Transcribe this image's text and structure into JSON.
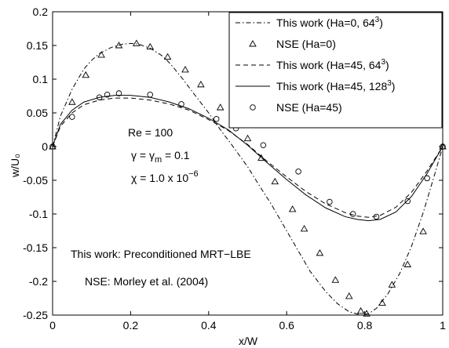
{
  "chart_data": {
    "type": "line",
    "xlabel": "x/W",
    "ylabel": "w/U₀",
    "xlim": [
      0,
      1
    ],
    "ylim": [
      -0.25,
      0.2
    ],
    "xticks": [
      0,
      0.2,
      0.4,
      0.6,
      0.8,
      1
    ],
    "xtick_labels": [
      "0",
      "0.2",
      "0.4",
      "0.6",
      "0.8",
      "1"
    ],
    "yticks": [
      -0.25,
      -0.2,
      -0.15,
      -0.1,
      -0.05,
      0,
      0.05,
      0.1,
      0.15,
      0.2
    ],
    "ytick_labels": [
      "-0.25",
      "-0.2",
      "-0.15",
      "-0.1",
      "-0.05",
      "0",
      "0.05",
      "0.1",
      "0.15",
      "0.2"
    ],
    "grid": false,
    "legend_position": "top-right",
    "annotations": {
      "re": "Re = 100",
      "gamma": "γ = γ",
      "gamma_sub": "m",
      "gamma_val": " = 0.1",
      "chi": "χ = 1.0 x 10",
      "chi_exp": "−6",
      "method": "This work: Preconditioned MRT−LBE",
      "nse_ref": "NSE: Morley et al. (2004)"
    },
    "series": [
      {
        "name": "This work (Ha=0, 64³)",
        "legend_main": "This work (Ha=0, 64",
        "legend_sup": "3",
        "legend_end": ")",
        "style": "dash-dot",
        "marker": "none",
        "x": [
          0,
          0.02,
          0.05,
          0.08,
          0.1,
          0.12,
          0.15,
          0.18,
          0.2,
          0.22,
          0.25,
          0.28,
          0.3,
          0.33,
          0.36,
          0.4,
          0.43,
          0.46,
          0.5,
          0.53,
          0.56,
          0.6,
          0.63,
          0.66,
          0.7,
          0.73,
          0.76,
          0.79,
          0.81,
          0.83,
          0.86,
          0.89,
          0.92,
          0.95,
          0.98,
          1
        ],
        "y": [
          0,
          0.045,
          0.085,
          0.115,
          0.128,
          0.138,
          0.147,
          0.152,
          0.153,
          0.152,
          0.146,
          0.135,
          0.124,
          0.103,
          0.08,
          0.05,
          0.025,
          0.002,
          -0.03,
          -0.058,
          -0.085,
          -0.125,
          -0.155,
          -0.185,
          -0.215,
          -0.233,
          -0.245,
          -0.25,
          -0.248,
          -0.24,
          -0.218,
          -0.188,
          -0.148,
          -0.098,
          -0.04,
          0
        ]
      },
      {
        "name": "NSE (Ha=0)",
        "legend_main": "NSE (Ha=0)",
        "legend_sup": "",
        "legend_end": "",
        "style": "none",
        "marker": "triangle",
        "x": [
          0,
          0.05,
          0.085,
          0.125,
          0.17,
          0.215,
          0.25,
          0.295,
          0.34,
          0.38,
          0.43,
          0.5,
          0.535,
          0.57,
          0.615,
          0.645,
          0.685,
          0.725,
          0.76,
          0.79,
          0.805,
          0.845,
          0.87,
          0.91,
          0.95,
          1
        ],
        "y": [
          0,
          0.066,
          0.106,
          0.136,
          0.15,
          0.153,
          0.148,
          0.133,
          0.114,
          0.092,
          0.058,
          0.012,
          -0.017,
          -0.052,
          -0.093,
          -0.122,
          -0.158,
          -0.198,
          -0.222,
          -0.244,
          -0.248,
          -0.232,
          -0.205,
          -0.175,
          -0.126,
          0
        ]
      },
      {
        "name": "This work (Ha=45, 64³)",
        "legend_main": "This work (Ha=45, 64",
        "legend_sup": "3",
        "legend_end": ")",
        "style": "dashed",
        "marker": "none",
        "x": [
          0,
          0.02,
          0.05,
          0.08,
          0.12,
          0.16,
          0.2,
          0.25,
          0.3,
          0.35,
          0.4,
          0.45,
          0.5,
          0.55,
          0.6,
          0.65,
          0.7,
          0.75,
          0.78,
          0.81,
          0.84,
          0.88,
          0.92,
          0.96,
          1
        ],
        "y": [
          0,
          0.03,
          0.05,
          0.062,
          0.069,
          0.072,
          0.072,
          0.069,
          0.063,
          0.054,
          0.04,
          0.024,
          0.003,
          -0.022,
          -0.045,
          -0.067,
          -0.085,
          -0.098,
          -0.103,
          -0.105,
          -0.102,
          -0.09,
          -0.068,
          -0.036,
          0
        ]
      },
      {
        "name": "This work (Ha=45, 128³)",
        "legend_main": "This work (Ha=45, 128",
        "legend_sup": "3",
        "legend_end": ")",
        "style": "solid",
        "marker": "none",
        "x": [
          0,
          0.02,
          0.05,
          0.08,
          0.12,
          0.16,
          0.2,
          0.25,
          0.3,
          0.35,
          0.4,
          0.45,
          0.5,
          0.55,
          0.6,
          0.65,
          0.7,
          0.75,
          0.78,
          0.81,
          0.84,
          0.88,
          0.92,
          0.96,
          1
        ],
        "y": [
          0,
          0.033,
          0.054,
          0.066,
          0.073,
          0.076,
          0.076,
          0.073,
          0.066,
          0.056,
          0.042,
          0.025,
          0.002,
          -0.024,
          -0.049,
          -0.072,
          -0.091,
          -0.104,
          -0.108,
          -0.11,
          -0.108,
          -0.097,
          -0.074,
          -0.04,
          0
        ]
      },
      {
        "name": "NSE (Ha=45)",
        "legend_main": "NSE (Ha=45)",
        "legend_sup": "",
        "legend_end": "",
        "style": "none",
        "marker": "circle",
        "x": [
          0,
          0.05,
          0.12,
          0.14,
          0.17,
          0.25,
          0.33,
          0.42,
          0.47,
          0.54,
          0.63,
          0.71,
          0.77,
          0.83,
          0.91,
          0.96,
          1
        ],
        "y": [
          0,
          0.044,
          0.073,
          0.077,
          0.079,
          0.077,
          0.063,
          0.041,
          0.027,
          0.002,
          -0.037,
          -0.082,
          -0.1,
          -0.104,
          -0.081,
          -0.047,
          0
        ]
      }
    ]
  }
}
